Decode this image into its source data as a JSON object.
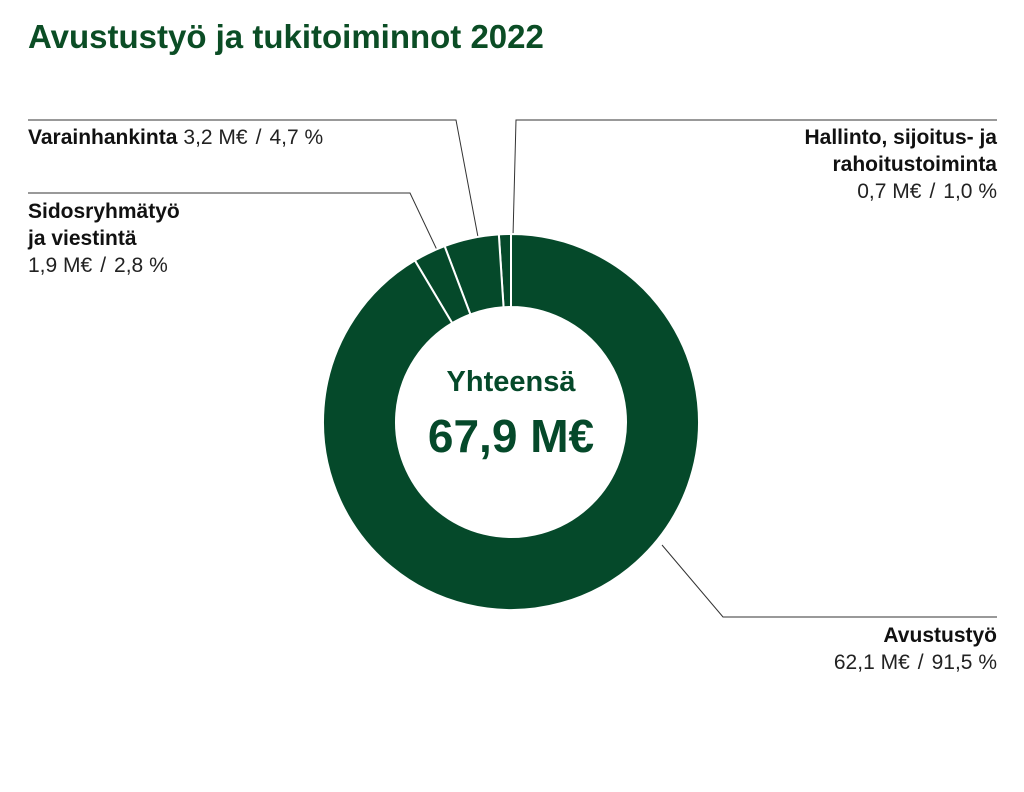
{
  "chart_data": {
    "type": "donut",
    "title": "Avustustyö ja tukitoiminnot 2022",
    "categories": [
      "Avustustyö",
      "Sidosryhmätyö ja viestintä",
      "Varainhankinta",
      "Hallinto, sijoitus- ja rahoitustoiminta"
    ],
    "values": [
      62.1,
      1.9,
      3.2,
      0.7
    ],
    "value_labels": [
      "62,1 M€",
      "1,9 M€",
      "3,2 M€",
      "0,7 M€"
    ],
    "percentages": [
      91.5,
      2.8,
      4.7,
      1.0
    ],
    "percentage_labels": [
      "91,5 %",
      "2,8 %",
      "4,7 %",
      "1,0 %"
    ],
    "separator": "/",
    "center_label": "Yhteensä",
    "total": 67.9,
    "total_label": "67,9 M€",
    "color": "#05492a"
  }
}
